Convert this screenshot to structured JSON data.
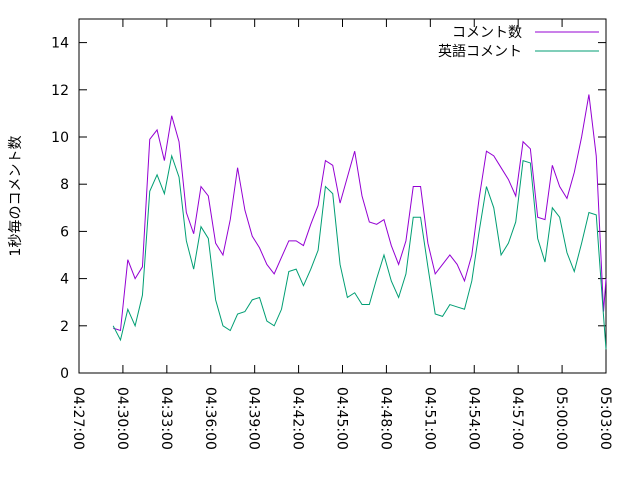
{
  "chart_data": {
    "type": "line",
    "ylabel": "1秒毎のコメント数",
    "x": [
      "04:29:20",
      "04:29:50",
      "04:30:20",
      "04:30:50",
      "04:31:20",
      "04:31:50",
      "04:32:20",
      "04:32:50",
      "04:33:20",
      "04:33:50",
      "04:34:20",
      "04:34:50",
      "04:35:20",
      "04:35:50",
      "04:36:20",
      "04:36:50",
      "04:37:20",
      "04:37:50",
      "04:38:20",
      "04:38:50",
      "04:39:20",
      "04:39:50",
      "04:40:20",
      "04:40:50",
      "04:41:20",
      "04:41:50",
      "04:42:20",
      "04:42:50",
      "04:43:20",
      "04:43:50",
      "04:44:20",
      "04:44:50",
      "04:45:20",
      "04:45:50",
      "04:46:20",
      "04:46:50",
      "04:47:20",
      "04:47:50",
      "04:48:20",
      "04:48:50",
      "04:49:20",
      "04:49:50",
      "04:50:20",
      "04:50:50",
      "04:51:20",
      "04:51:50",
      "04:52:20",
      "04:52:50",
      "04:53:20",
      "04:53:50",
      "04:54:20",
      "04:54:50",
      "04:55:20",
      "04:55:50",
      "04:56:20",
      "04:56:50",
      "04:57:20",
      "04:57:50",
      "04:58:20",
      "04:58:50",
      "04:59:20",
      "04:59:50",
      "05:00:20",
      "05:00:50",
      "05:01:20",
      "05:01:50",
      "05:02:20",
      "05:02:50",
      "05:03:00"
    ],
    "series": [
      {
        "name": "コメント数",
        "color": "#9400d3",
        "values": [
          1.9,
          1.8,
          4.8,
          4.0,
          4.5,
          9.9,
          10.3,
          9.0,
          10.9,
          9.8,
          6.8,
          5.9,
          7.9,
          7.5,
          5.5,
          5.0,
          6.5,
          8.7,
          6.9,
          5.8,
          5.3,
          4.6,
          4.2,
          4.9,
          5.6,
          5.6,
          5.4,
          6.3,
          7.1,
          9.0,
          8.8,
          7.2,
          8.3,
          9.4,
          7.5,
          6.4,
          6.3,
          6.5,
          5.4,
          4.6,
          5.6,
          7.9,
          7.9,
          5.5,
          4.2,
          4.6,
          5.0,
          4.6,
          3.9,
          5.0,
          7.4,
          9.4,
          9.2,
          8.7,
          8.2,
          7.5,
          9.8,
          9.5,
          6.6,
          6.5,
          8.8,
          7.9,
          7.4,
          8.5,
          10.0,
          11.8,
          9.2,
          2.6,
          4.0
        ]
      },
      {
        "name": "英語コメント",
        "color": "#009e73",
        "values": [
          2.0,
          1.4,
          2.7,
          2.0,
          3.3,
          7.7,
          8.4,
          7.6,
          9.2,
          8.3,
          5.6,
          4.4,
          6.2,
          5.7,
          3.1,
          2.0,
          1.8,
          2.5,
          2.6,
          3.1,
          3.2,
          2.2,
          2.0,
          2.7,
          4.3,
          4.4,
          3.7,
          4.4,
          5.2,
          7.9,
          7.6,
          4.6,
          3.2,
          3.4,
          2.9,
          2.9,
          4.0,
          5.0,
          3.9,
          3.2,
          4.2,
          6.6,
          6.6,
          4.5,
          2.5,
          2.4,
          2.9,
          2.8,
          2.7,
          3.9,
          6.0,
          7.9,
          7.0,
          5.0,
          5.5,
          6.4,
          9.0,
          8.9,
          5.7,
          4.7,
          7.0,
          6.6,
          5.1,
          4.3,
          5.5,
          6.8,
          6.7,
          2.4,
          1.0
        ]
      }
    ],
    "xlim": [
      "04:27:00",
      "05:03:00"
    ],
    "xticks": [
      "04:27:00",
      "04:30:00",
      "04:33:00",
      "04:36:00",
      "04:39:00",
      "04:42:00",
      "04:45:00",
      "04:48:00",
      "04:51:00",
      "04:54:00",
      "04:57:00",
      "05:00:00",
      "05:03:00"
    ],
    "ylim": [
      0,
      15
    ],
    "yticks": [
      0,
      2,
      4,
      6,
      8,
      10,
      12,
      14
    ],
    "legend": "top-right"
  }
}
